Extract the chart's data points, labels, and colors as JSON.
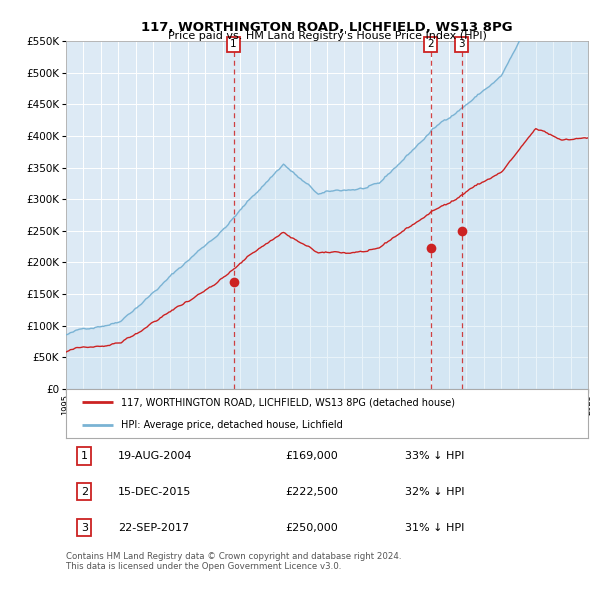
{
  "title": "117, WORTHINGTON ROAD, LICHFIELD, WS13 8PG",
  "subtitle": "Price paid vs. HM Land Registry's House Price Index (HPI)",
  "ytick_values": [
    0,
    50000,
    100000,
    150000,
    200000,
    250000,
    300000,
    350000,
    400000,
    450000,
    500000,
    550000
  ],
  "hpi_color": "#7ab3d4",
  "hpi_fill": "#c5dff0",
  "price_color": "#cc2222",
  "vline_color": "#cc2222",
  "plot_bg": "#ddeaf5",
  "transactions": [
    {
      "label": "1",
      "date": 2004.63,
      "price": 169000
    },
    {
      "label": "2",
      "date": 2015.96,
      "price": 222500
    },
    {
      "label": "3",
      "date": 2017.73,
      "price": 250000
    }
  ],
  "legend_property_label": "117, WORTHINGTON ROAD, LICHFIELD, WS13 8PG (detached house)",
  "legend_hpi_label": "HPI: Average price, detached house, Lichfield",
  "table_rows": [
    {
      "num": "1",
      "date": "19-AUG-2004",
      "price": "£169,000",
      "hpi": "33% ↓ HPI"
    },
    {
      "num": "2",
      "date": "15-DEC-2015",
      "price": "£222,500",
      "hpi": "32% ↓ HPI"
    },
    {
      "num": "3",
      "date": "22-SEP-2017",
      "price": "£250,000",
      "hpi": "31% ↓ HPI"
    }
  ],
  "footer": "Contains HM Land Registry data © Crown copyright and database right 2024.\nThis data is licensed under the Open Government Licence v3.0.",
  "x_start_year": 1995,
  "x_end_year": 2025
}
